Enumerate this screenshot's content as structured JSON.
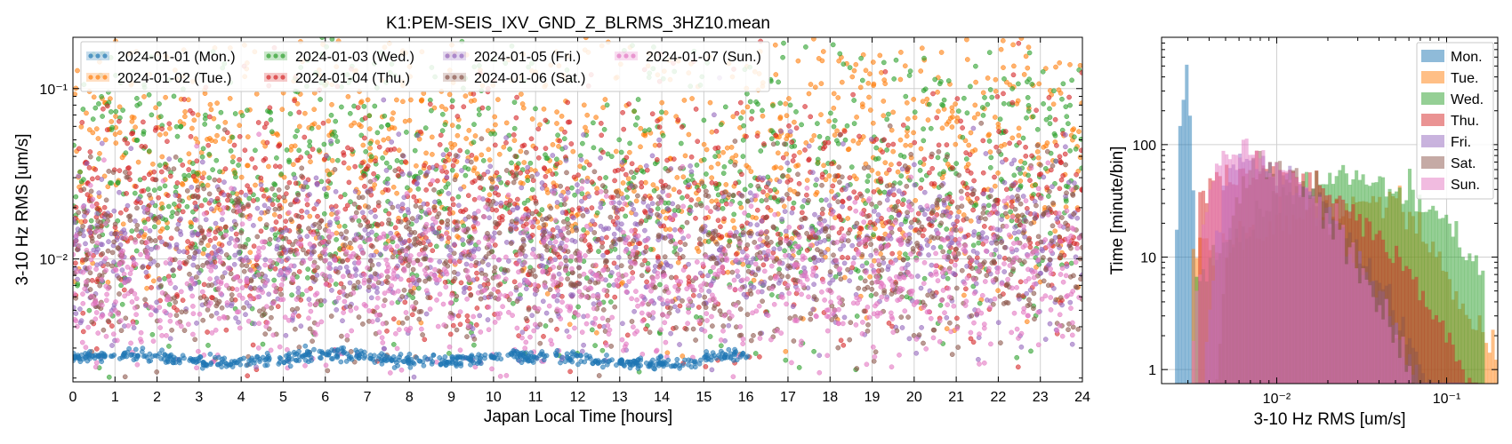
{
  "chart_data": [
    {
      "type": "scatter",
      "title": "K1:PEM-SEIS_IXV_GND_Z_BLRMS_3HZ10.mean",
      "xlabel": "Japan Local Time [hours]",
      "ylabel": "3-10 Hz RMS [um/s]",
      "xlim": [
        0,
        24
      ],
      "ylim": [
        0.0019,
        0.2
      ],
      "yscale": "log",
      "grid": true,
      "legend_placement": "top-left",
      "x_ticks": [
        "0",
        "1",
        "2",
        "3",
        "4",
        "5",
        "6",
        "7",
        "8",
        "9",
        "10",
        "11",
        "12",
        "13",
        "14",
        "15",
        "16",
        "17",
        "18",
        "19",
        "20",
        "21",
        "22",
        "23",
        "24"
      ],
      "y_ticks": [
        {
          "value": 0.01,
          "label": "10⁻²"
        },
        {
          "value": 0.1,
          "label": "10⁻¹"
        }
      ],
      "series": [
        {
          "name": "2024-01-01 (Mon.)",
          "color": "#1f77b4",
          "x_range": [
            0,
            16.1
          ],
          "y_center": 0.0026,
          "y_spread": 0.06,
          "band": true
        },
        {
          "name": "2024-01-02 (Tue.)",
          "color": "#ff7f0e",
          "x_range": [
            0,
            24
          ],
          "y_center": 0.04,
          "y_spread": 0.9
        },
        {
          "name": "2024-01-03 (Wed.)",
          "color": "#2ca02c",
          "x_range": [
            0,
            24
          ],
          "y_center": 0.025,
          "y_spread": 1.0
        },
        {
          "name": "2024-01-04 (Thu.)",
          "color": "#d62728",
          "x_range": [
            0,
            24
          ],
          "y_center": 0.018,
          "y_spread": 0.8
        },
        {
          "name": "2024-01-05 (Fri.)",
          "color": "#9467bd",
          "x_range": [
            0,
            24
          ],
          "y_center": 0.011,
          "y_spread": 0.6
        },
        {
          "name": "2024-01-06 (Sat.)",
          "color": "#8c564b",
          "x_range": [
            0,
            24
          ],
          "y_center": 0.01,
          "y_spread": 0.6
        },
        {
          "name": "2024-01-07 (Sun.)",
          "color": "#e377c2",
          "x_range": [
            0,
            24
          ],
          "y_center": 0.007,
          "y_spread": 0.55
        }
      ]
    },
    {
      "type": "bar",
      "subtype": "histogram",
      "xlabel": "3-10 Hz RMS [um/s]",
      "ylabel": "Time [minute/bin]",
      "xscale": "log",
      "yscale": "log",
      "xlim": [
        0.0021,
        0.2
      ],
      "ylim": [
        0.75,
        900
      ],
      "grid": true,
      "legend_placement": "top-right",
      "x_ticks": [
        {
          "value": 0.01,
          "label": "10⁻²"
        },
        {
          "value": 0.1,
          "label": "10⁻¹"
        }
      ],
      "y_ticks": [
        {
          "value": 1,
          "label": "1"
        },
        {
          "value": 10,
          "label": "10"
        },
        {
          "value": 100,
          "label": "100"
        }
      ],
      "series": [
        {
          "name": "Mon.",
          "color": "#1f77b4",
          "bin_range": [
            0.0025,
            0.0033
          ],
          "peak_x": 0.0029,
          "peak_y": 500,
          "shape": "narrow"
        },
        {
          "name": "Tue.",
          "color": "#ff7f0e",
          "bin_range": [
            0.0032,
            0.2
          ],
          "peak_x": 0.05,
          "peak_y": 45,
          "shape": "rising"
        },
        {
          "name": "Wed.",
          "color": "#2ca02c",
          "bin_range": [
            0.0033,
            0.17
          ],
          "peak_x": 0.025,
          "peak_y": 50,
          "shape": "broad"
        },
        {
          "name": "Thu.",
          "color": "#d62728",
          "bin_range": [
            0.0034,
            0.15
          ],
          "peak_x": 0.008,
          "peak_y": 55,
          "shape": "broad"
        },
        {
          "name": "Fri.",
          "color": "#9467bd",
          "bin_range": [
            0.0033,
            0.12
          ],
          "peak_x": 0.006,
          "peak_y": 70,
          "shape": "falling"
        },
        {
          "name": "Sat.",
          "color": "#8c564b",
          "bin_range": [
            0.0033,
            0.15
          ],
          "peak_x": 0.007,
          "peak_y": 60,
          "shape": "falling"
        },
        {
          "name": "Sun.",
          "color": "#e377c2",
          "bin_range": [
            0.0032,
            0.13
          ],
          "peak_x": 0.005,
          "peak_y": 95,
          "shape": "falling"
        }
      ]
    }
  ]
}
